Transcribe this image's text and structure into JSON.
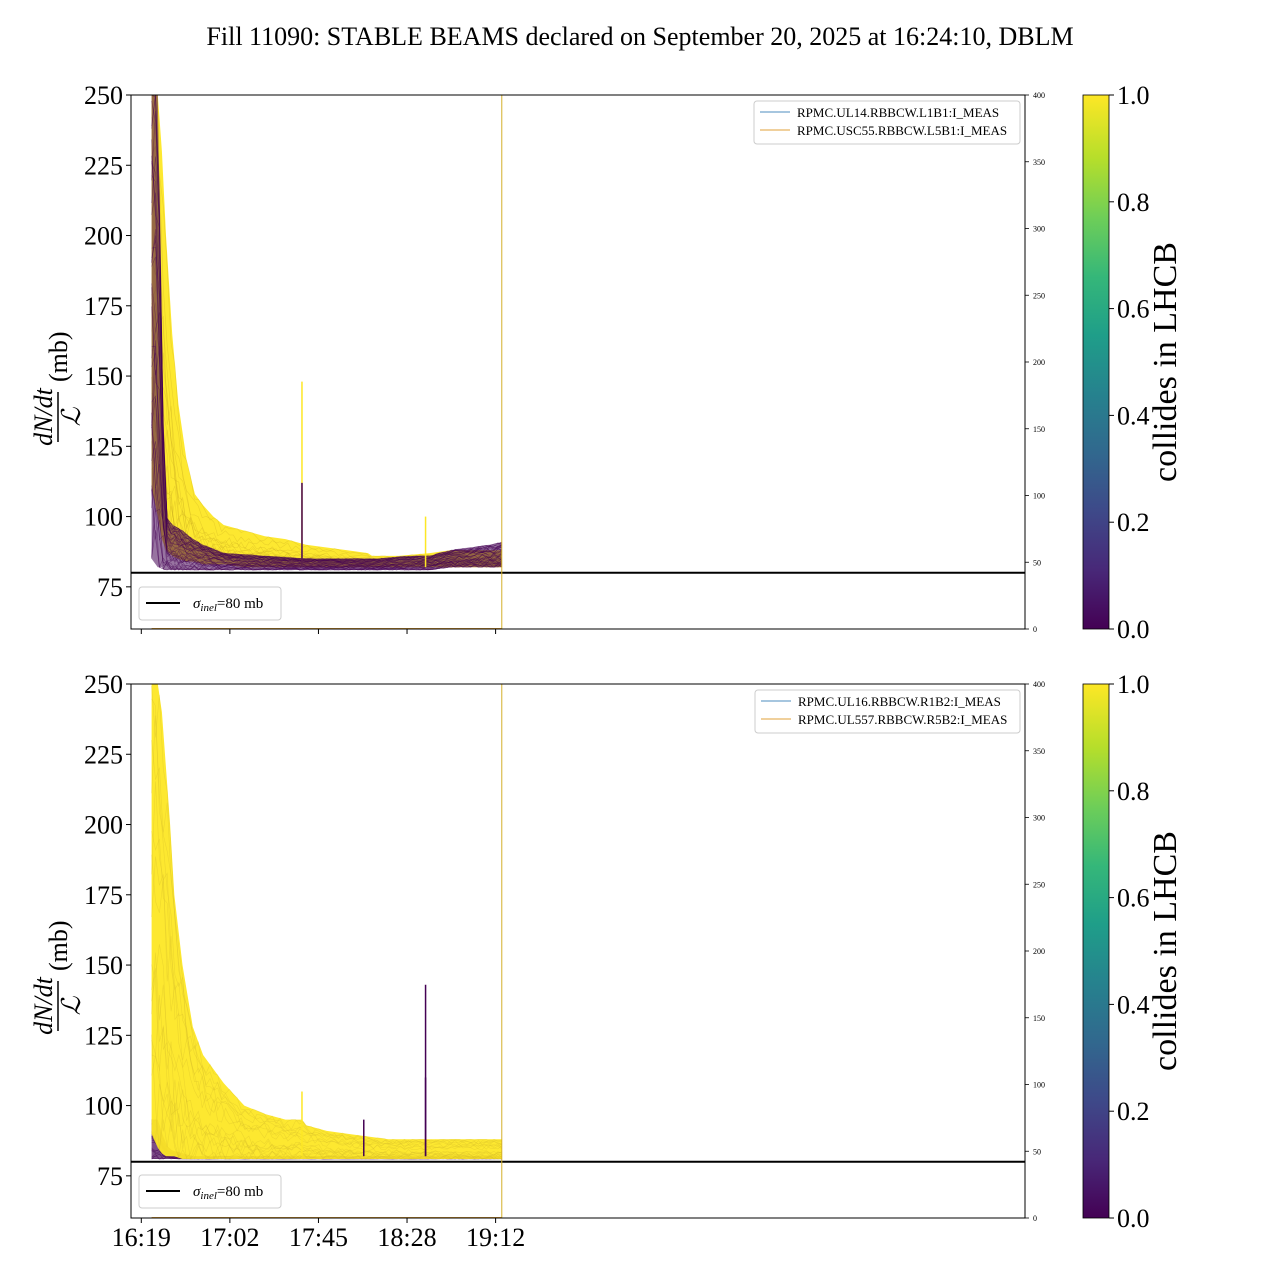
{
  "title": "Fill 11090: STABLE BEAMS declared on September 20, 2025 at 16:24:10, DBLM",
  "colors": {
    "viridis": [
      "#440154",
      "#482878",
      "#3e4989",
      "#31688e",
      "#26828e",
      "#1f9e89",
      "#35b779",
      "#6ece58",
      "#b5de2b",
      "#fde725"
    ],
    "collides": "#fde725",
    "non_colliding": "#440154",
    "rpmc_a": "#4c8cbf",
    "rpmc_b": "#e0a23a",
    "sigma_line": "#000000"
  },
  "chart_data": [
    {
      "type": "line",
      "panel": "top",
      "ylabel_fraction_numerator": "dN/dt",
      "ylabel_fraction_denominator": "ℒ",
      "ylabel_unit": "(mb)",
      "ylim": [
        60,
        250
      ],
      "yticks": [
        75,
        100,
        125,
        150,
        175,
        200,
        225,
        250
      ],
      "secondary_ylim": [
        0,
        400
      ],
      "secondary_yticks": [
        0,
        50,
        100,
        150,
        200,
        250,
        300,
        350,
        400
      ],
      "xlim_minutes": [
        -5,
        429
      ],
      "xticks": [
        {
          "minutes": 0,
          "label": ""
        },
        {
          "minutes": 43,
          "label": ""
        },
        {
          "minutes": 86,
          "label": ""
        },
        {
          "minutes": 129,
          "label": ""
        },
        {
          "minutes": 172,
          "label": ""
        }
      ],
      "vline_minutes": 175,
      "sigma_inel_mb": 80,
      "sigma_legend": {
        "symbol": "σ",
        "subscript": "inel",
        "text": "=80 mb"
      },
      "legend": [
        "RPMC.UL14.RBBCW.L1B1:I_MEAS",
        "RPMC.USC55.RBBCW.L5B1:I_MEAS"
      ],
      "colliding_envelope": {
        "x": [
          5,
          8,
          10,
          12,
          15,
          18,
          22,
          26,
          30,
          35,
          40,
          50,
          60,
          70,
          80,
          90,
          100,
          110,
          112,
          115,
          125,
          140,
          150,
          160,
          170,
          175
        ],
        "upper": [
          250,
          250,
          230,
          200,
          165,
          140,
          120,
          108,
          104,
          100,
          97,
          95,
          93,
          92,
          90,
          89,
          88,
          87,
          86,
          86,
          86,
          87,
          88,
          88,
          88,
          88
        ],
        "lower": [
          110,
          100,
          92,
          88,
          86,
          85,
          84,
          84,
          83,
          83,
          83,
          82,
          82,
          82,
          82,
          82,
          82,
          82,
          82,
          82,
          82,
          82,
          82,
          82,
          82,
          82
        ]
      },
      "noncolliding_envelope": {
        "x": [
          5,
          8,
          10,
          11,
          12,
          15,
          20,
          25,
          30,
          40,
          60,
          80,
          100,
          110,
          115,
          130,
          140,
          150,
          160,
          170,
          175
        ],
        "upper": [
          250,
          250,
          160,
          120,
          100,
          97,
          95,
          92,
          90,
          87,
          86,
          85,
          85,
          85,
          85,
          86,
          86,
          88,
          89,
          90,
          91
        ],
        "lower": [
          85,
          82,
          82,
          81,
          81,
          81,
          81,
          81,
          81,
          81,
          81,
          81,
          81,
          81,
          81,
          81,
          81,
          82,
          82,
          82,
          82
        ]
      },
      "spikes": [
        {
          "x": 78,
          "y": 148,
          "color": "#fde725"
        },
        {
          "x": 78,
          "y": 112,
          "color": "#440154"
        },
        {
          "x": 138,
          "y": 100,
          "color": "#fde725"
        }
      ]
    },
    {
      "type": "line",
      "panel": "bottom",
      "ylabel_fraction_numerator": "dN/dt",
      "ylabel_fraction_denominator": "ℒ",
      "ylabel_unit": "(mb)",
      "ylim": [
        60,
        250
      ],
      "yticks": [
        75,
        100,
        125,
        150,
        175,
        200,
        225,
        250
      ],
      "secondary_ylim": [
        0,
        400
      ],
      "secondary_yticks": [
        0,
        50,
        100,
        150,
        200,
        250,
        300,
        350,
        400
      ],
      "xlim_minutes": [
        -5,
        429
      ],
      "xticks": [
        {
          "minutes": 0,
          "label": "16:19"
        },
        {
          "minutes": 43,
          "label": "17:02"
        },
        {
          "minutes": 86,
          "label": "17:45"
        },
        {
          "minutes": 129,
          "label": "18:28"
        },
        {
          "minutes": 172,
          "label": "19:12"
        }
      ],
      "vline_minutes": 175,
      "sigma_inel_mb": 80,
      "sigma_legend": {
        "symbol": "σ",
        "subscript": "inel",
        "text": "=80 mb"
      },
      "legend": [
        "RPMC.UL16.RBBCW.R1B2:I_MEAS",
        "RPMC.UL557.RBBCW.R5B2:I_MEAS"
      ],
      "colliding_envelope": {
        "x": [
          5,
          8,
          10,
          12,
          14,
          16,
          20,
          25,
          30,
          40,
          50,
          60,
          70,
          78,
          80,
          90,
          100,
          110,
          120,
          130,
          140,
          150,
          160,
          170,
          175
        ],
        "upper": [
          250,
          250,
          240,
          220,
          200,
          175,
          150,
          128,
          118,
          108,
          100,
          97,
          95,
          95,
          93,
          91,
          90,
          89,
          88,
          88,
          88,
          88,
          88,
          88,
          88
        ],
        "lower": [
          90,
          85,
          83,
          82,
          82,
          82,
          81,
          81,
          81,
          81,
          81,
          81,
          81,
          81,
          81,
          81,
          81,
          81,
          81,
          81,
          81,
          81,
          81,
          81,
          81
        ]
      },
      "noncolliding_envelope": {
        "x": [
          5,
          8,
          10,
          12,
          15,
          20,
          25,
          30,
          40,
          60,
          80,
          100,
          120,
          140,
          160,
          175
        ],
        "upper": [
          95,
          95,
          90,
          86,
          84,
          83,
          82,
          82,
          82,
          82,
          82,
          82,
          82,
          82,
          82,
          82
        ],
        "lower": [
          81,
          81,
          81,
          81,
          81,
          81,
          81,
          81,
          81,
          81,
          81,
          81,
          81,
          81,
          81,
          81
        ]
      },
      "spikes": [
        {
          "x": 78,
          "y": 105,
          "color": "#fde725"
        },
        {
          "x": 108,
          "y": 95,
          "color": "#440154"
        },
        {
          "x": 138,
          "y": 143,
          "color": "#440154"
        },
        {
          "x": 138,
          "y": 110,
          "color": "#440154"
        }
      ]
    }
  ],
  "colorbars": [
    {
      "label": "collides in LHCB",
      "ticks": [
        "0.0",
        "0.2",
        "0.4",
        "0.6",
        "0.8",
        "1.0"
      ]
    },
    {
      "label": "collides in LHCB",
      "ticks": [
        "0.0",
        "0.2",
        "0.4",
        "0.6",
        "0.8",
        "1.0"
      ]
    }
  ]
}
